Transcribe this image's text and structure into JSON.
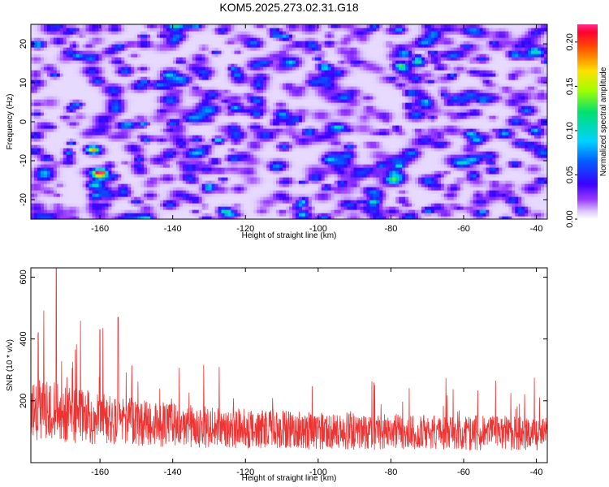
{
  "figure": {
    "title": "KOM5.2025.273.02.31.G18"
  },
  "chart_data": [
    {
      "type": "heatmap",
      "xlabel": "Height of straight line (km)",
      "ylabel": "Frequency (Hz)",
      "xlim": [
        -179,
        -37
      ],
      "ylim": [
        -25,
        25
      ],
      "xticks": [
        -160,
        -140,
        -120,
        -100,
        -80,
        -60,
        -40
      ],
      "yticks": [
        -20,
        -10,
        0,
        10,
        20
      ],
      "colorbar": {
        "label": "Normalized spectral amplitude",
        "range": [
          0.0,
          0.22
        ],
        "ticks": [
          "0.00",
          "0.05",
          "0.10",
          "0.15",
          "0.20"
        ],
        "colormap": "rainbow (white → violet → blue → cyan → green → yellow → red → magenta)"
      },
      "description_values": {
        "dominant_level": 0.03,
        "hotspots": [
          {
            "x": -162,
            "y": -7,
            "value": 0.15
          },
          {
            "x": -160,
            "y": -13,
            "value": 0.17
          },
          {
            "x": -177,
            "y": 20,
            "value": 0.09
          },
          {
            "x": -98,
            "y": 14,
            "value": 0.09
          },
          {
            "x": -58,
            "y": -3,
            "value": 0.09
          }
        ]
      }
    },
    {
      "type": "line",
      "xlabel": "Height of straight line (km)",
      "ylabel": "SNR (10 * v/v)",
      "xlim": [
        -179,
        -37
      ],
      "ylim": [
        0,
        630
      ],
      "xticks": [
        -160,
        -140,
        -120,
        -100,
        -80,
        -60,
        -40
      ],
      "yticks": [
        200,
        400,
        600
      ],
      "color": "#ee3333",
      "peaks": [
        {
          "x": -172,
          "y": 630
        },
        {
          "x": -155,
          "y": 470
        },
        {
          "x": -160,
          "y": 430
        },
        {
          "x": -177,
          "y": 420
        }
      ],
      "baseline_mean": 130
    }
  ]
}
